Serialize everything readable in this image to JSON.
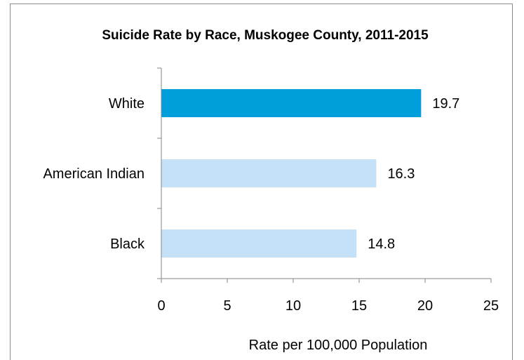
{
  "chart_data": {
    "type": "bar",
    "orientation": "horizontal",
    "title": "Suicide Rate by Race, Muskogee County, 2011-2015",
    "xlabel": "Rate per 100,000 Population",
    "ylabel": "",
    "categories": [
      "White",
      "American Indian",
      "Black"
    ],
    "values": [
      19.7,
      16.3,
      14.8
    ],
    "value_labels": [
      "19.7",
      "16.3",
      "14.8"
    ],
    "xlim": [
      0,
      25
    ],
    "xticks": [
      0,
      5,
      10,
      15,
      20,
      25
    ],
    "grid": false,
    "legend": "none",
    "colors": [
      "#009fdb",
      "#c5e1f8",
      "#c5e1f8"
    ],
    "axis_color": "#868686"
  }
}
